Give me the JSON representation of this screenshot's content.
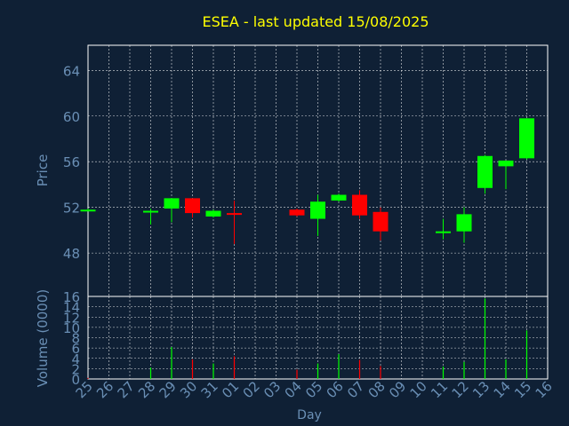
{
  "colors": {
    "background": "#0f2035",
    "frame": "#ffffff",
    "grid": "#ffffff",
    "title": "#ffff00",
    "axis_label": "#6a8fb5",
    "tick_label": "#6a8fb5",
    "up": "#00ff00",
    "down": "#ff0000"
  },
  "chart_data": [
    {
      "type": "candlestick",
      "title": "ESEA - last updated 15/08/2025",
      "ylabel": "Price",
      "ylim": [
        44.2,
        66.2
      ],
      "yticks": [
        48,
        52,
        56,
        60,
        64
      ],
      "grid": true,
      "categories": [
        "25",
        "26",
        "27",
        "28",
        "29",
        "30",
        "31",
        "01",
        "02",
        "03",
        "04",
        "05",
        "06",
        "07",
        "08",
        "09",
        "10",
        "11",
        "12",
        "13",
        "14",
        "15",
        "16"
      ],
      "ohlc": [
        {
          "day": "25",
          "open": 51.8,
          "high": 51.9,
          "low": 51.7,
          "close": 51.8
        },
        {
          "day": "28",
          "open": 51.6,
          "high": 51.9,
          "low": 50.5,
          "close": 51.7
        },
        {
          "day": "29",
          "open": 51.9,
          "high": 52.8,
          "low": 50.7,
          "close": 52.8
        },
        {
          "day": "30",
          "open": 52.8,
          "high": 52.8,
          "low": 51.1,
          "close": 51.5
        },
        {
          "day": "31",
          "open": 51.2,
          "high": 51.8,
          "low": 51.1,
          "close": 51.7
        },
        {
          "day": "01",
          "open": 51.5,
          "high": 52.6,
          "low": 48.8,
          "close": 51.4
        },
        {
          "day": "04",
          "open": 51.8,
          "high": 51.9,
          "low": 51.2,
          "close": 51.3
        },
        {
          "day": "05",
          "open": 51.0,
          "high": 53.1,
          "low": 49.5,
          "close": 52.5
        },
        {
          "day": "06",
          "open": 52.6,
          "high": 53.2,
          "low": 52.5,
          "close": 53.1
        },
        {
          "day": "07",
          "open": 53.1,
          "high": 53.5,
          "low": 51.0,
          "close": 51.3
        },
        {
          "day": "08",
          "open": 51.6,
          "high": 52.0,
          "low": 49.1,
          "close": 49.9
        },
        {
          "day": "11",
          "open": 49.8,
          "high": 51.0,
          "low": 49.2,
          "close": 49.9
        },
        {
          "day": "12",
          "open": 49.9,
          "high": 52.0,
          "low": 48.9,
          "close": 51.4
        },
        {
          "day": "13",
          "open": 53.7,
          "high": 56.6,
          "low": 53.2,
          "close": 56.5
        },
        {
          "day": "14",
          "open": 55.6,
          "high": 56.0,
          "low": 53.6,
          "close": 56.1
        },
        {
          "day": "15",
          "open": 56.3,
          "high": 59.8,
          "low": 56.2,
          "close": 59.8
        }
      ]
    },
    {
      "type": "bar",
      "xlabel": "Day",
      "ylabel": "Volume (0000)",
      "ylim": [
        0,
        16
      ],
      "yticks": [
        0,
        2,
        4,
        6,
        8,
        10,
        12,
        14,
        16
      ],
      "grid": true,
      "categories": [
        "25",
        "26",
        "27",
        "28",
        "29",
        "30",
        "31",
        "01",
        "02",
        "03",
        "04",
        "05",
        "06",
        "07",
        "08",
        "09",
        "10",
        "11",
        "12",
        "13",
        "14",
        "15",
        "16"
      ],
      "volume": [
        {
          "day": "25",
          "value": 0.2,
          "direction": "down"
        },
        {
          "day": "28",
          "value": 2.2,
          "direction": "up"
        },
        {
          "day": "29",
          "value": 6.2,
          "direction": "up"
        },
        {
          "day": "30",
          "value": 3.8,
          "direction": "down"
        },
        {
          "day": "31",
          "value": 3.0,
          "direction": "up"
        },
        {
          "day": "01",
          "value": 4.4,
          "direction": "down"
        },
        {
          "day": "04",
          "value": 1.8,
          "direction": "down"
        },
        {
          "day": "05",
          "value": 3.0,
          "direction": "up"
        },
        {
          "day": "06",
          "value": 4.8,
          "direction": "up"
        },
        {
          "day": "07",
          "value": 3.7,
          "direction": "down"
        },
        {
          "day": "08",
          "value": 2.5,
          "direction": "down"
        },
        {
          "day": "11",
          "value": 2.4,
          "direction": "up"
        },
        {
          "day": "12",
          "value": 3.3,
          "direction": "up"
        },
        {
          "day": "13",
          "value": 15.6,
          "direction": "up"
        },
        {
          "day": "14",
          "value": 3.8,
          "direction": "up"
        },
        {
          "day": "15",
          "value": 9.4,
          "direction": "up"
        }
      ]
    }
  ]
}
